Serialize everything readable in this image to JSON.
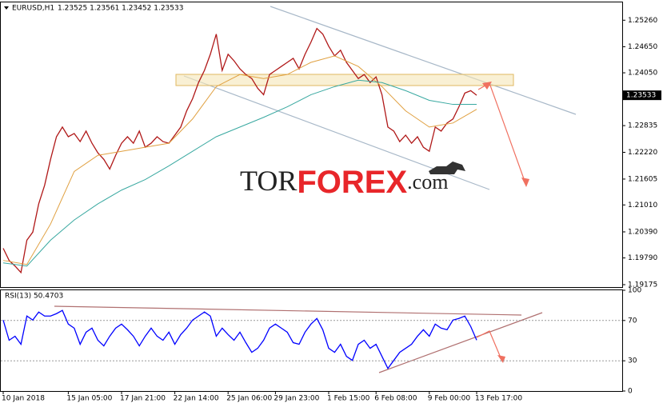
{
  "header": {
    "symbol": "EURUSD,H1",
    "ohlc": "1.23525 1.23561 1.23452 1.23533"
  },
  "watermark": {
    "part1": "TOR",
    "part2": "FOREX",
    "part3": ".com"
  },
  "chart_data": [
    {
      "type": "line",
      "categories": [
        "10 Jan 2018",
        null,
        null,
        null,
        null,
        null,
        null,
        null,
        null,
        null,
        null,
        "15 Jan 05:00",
        null,
        null,
        null,
        null,
        null,
        null,
        null,
        null,
        "17 Jan 21:00",
        null,
        null,
        null,
        null,
        null,
        null,
        null,
        null,
        "22 Jan 14:00",
        null,
        null,
        null,
        null,
        null,
        null,
        null,
        null,
        "25 Jan 06:00",
        null,
        null,
        null,
        null,
        null,
        null,
        null,
        "29 Jan 23:00",
        null,
        null,
        null,
        null,
        null,
        null,
        null,
        null,
        "1 Feb 15:00",
        null,
        null,
        null,
        null,
        null,
        null,
        null,
        "6 Feb 08:00",
        null,
        null,
        null,
        null,
        null,
        null,
        null,
        null,
        "9 Feb 00:00",
        null,
        null,
        null,
        null,
        null,
        null,
        null,
        "13 Feb 17:00"
      ],
      "series": [
        {
          "name": "EURUSD,H1",
          "color": "#b01818",
          "values": [
            1.20012,
            1.19733,
            1.19603,
            1.19454,
            1.20198,
            1.20384,
            1.21035,
            1.21463,
            1.22058,
            1.22579,
            1.22802,
            1.22579,
            1.22653,
            1.22467,
            1.22709,
            1.2243,
            1.22207,
            1.22058,
            1.21835,
            1.22151,
            1.2243,
            1.22579,
            1.2243,
            1.22709,
            1.22337,
            1.2243,
            1.22579,
            1.22467,
            1.2243,
            1.22616,
            1.22802,
            1.23174,
            1.23453,
            1.23825,
            1.24104,
            1.24476,
            1.24941,
            1.24104,
            1.24476,
            1.24327,
            1.24141,
            1.24011,
            1.23918,
            1.23695,
            1.23546,
            1.24011,
            1.24104,
            1.24197,
            1.2429,
            1.24383,
            1.24141,
            1.24476,
            1.24755,
            1.25071,
            1.24941,
            1.24662,
            1.24439,
            1.24569,
            1.2429,
            1.24104,
            1.23918,
            1.24011,
            1.23825,
            1.23955,
            1.23546,
            1.22802,
            1.22709,
            1.22467,
            1.22616,
            1.2243,
            1.22579,
            1.22337,
            1.22244,
            1.22802,
            1.22709,
            1.22895,
            1.22988,
            1.23267,
            1.23583,
            1.23639,
            1.23533
          ]
        },
        {
          "color": "#e0a040",
          "x": [
            0,
            4,
            8,
            12,
            16,
            20,
            24,
            28,
            32,
            36,
            40,
            44,
            48,
            52,
            56,
            60,
            64,
            68,
            72,
            76,
            80
          ],
          "values": [
            1.19733,
            1.1964,
            1.2057,
            1.21779,
            1.22151,
            1.22244,
            1.22337,
            1.2243,
            1.22988,
            1.23732,
            1.24011,
            1.23918,
            1.24011,
            1.2429,
            1.24439,
            1.24197,
            1.23732,
            1.23174,
            1.22802,
            1.22895,
            1.23211
          ]
        },
        {
          "color": "#38a8a0",
          "x": [
            0,
            4,
            8,
            12,
            16,
            20,
            24,
            28,
            32,
            36,
            40,
            44,
            48,
            52,
            56,
            60,
            64,
            68,
            72,
            76,
            80
          ],
          "values": [
            1.19677,
            1.19603,
            1.20198,
            1.20663,
            1.21035,
            1.21351,
            1.21593,
            1.21909,
            1.22244,
            1.22579,
            1.22802,
            1.23025,
            1.23267,
            1.23546,
            1.23732,
            1.23881,
            1.23825,
            1.23639,
            1.23416,
            1.23323,
            1.23323
          ]
        }
      ],
      "ylim": [
        1.1912,
        1.2567
      ],
      "yticks": [
        {
          "value": 1.2526,
          "label": "1.25260"
        },
        {
          "value": 1.2465,
          "label": "1.24650"
        },
        {
          "value": 1.2405,
          "label": "1.24050"
        },
        1.22835,
        {
          "value": 1.2222,
          "label": "1.22220"
        },
        1.21605,
        {
          "value": 1.2101,
          "label": "1.21010"
        },
        {
          "value": 1.2039,
          "label": "1.20390"
        },
        {
          "value": 1.1979,
          "label": "1.19790"
        },
        1.19175
      ],
      "last_price": 1.23533
    },
    {
      "type": "line",
      "title": "RSI(13) 50.4703",
      "series": [
        {
          "name": "RSI(13)",
          "color": "#0000ff",
          "values": [
            70.4,
            50.4,
            54.4,
            46.4,
            74.4,
            70.4,
            78.4,
            74.4,
            74.4,
            76.8,
            80,
            66.4,
            62.4,
            46.4,
            58.4,
            62.4,
            50.4,
            44.8,
            54.4,
            62.4,
            66.4,
            60.8,
            54.4,
            44.8,
            54.4,
            62.4,
            54.4,
            50.4,
            58.4,
            46.4,
            56,
            62.4,
            70.4,
            74.4,
            78.4,
            74.4,
            54.4,
            62.4,
            56,
            50.4,
            58.4,
            48,
            38.4,
            42.4,
            50.4,
            62.4,
            66.4,
            62.4,
            58.4,
            48,
            46.4,
            58.4,
            66.4,
            72,
            60.8,
            42.4,
            38.4,
            46.4,
            34.4,
            30.4,
            46.4,
            50.4,
            42.4,
            46.4,
            34.4,
            22.4,
            30.4,
            38.4,
            42.4,
            46.4,
            54.4,
            60.8,
            54.4,
            66.4,
            62.4,
            60.8,
            70.4,
            72,
            74.4,
            64,
            50.4703
          ]
        }
      ],
      "ylim": [
        0,
        100
      ],
      "yticks": [
        0,
        30,
        70,
        100
      ]
    }
  ]
}
